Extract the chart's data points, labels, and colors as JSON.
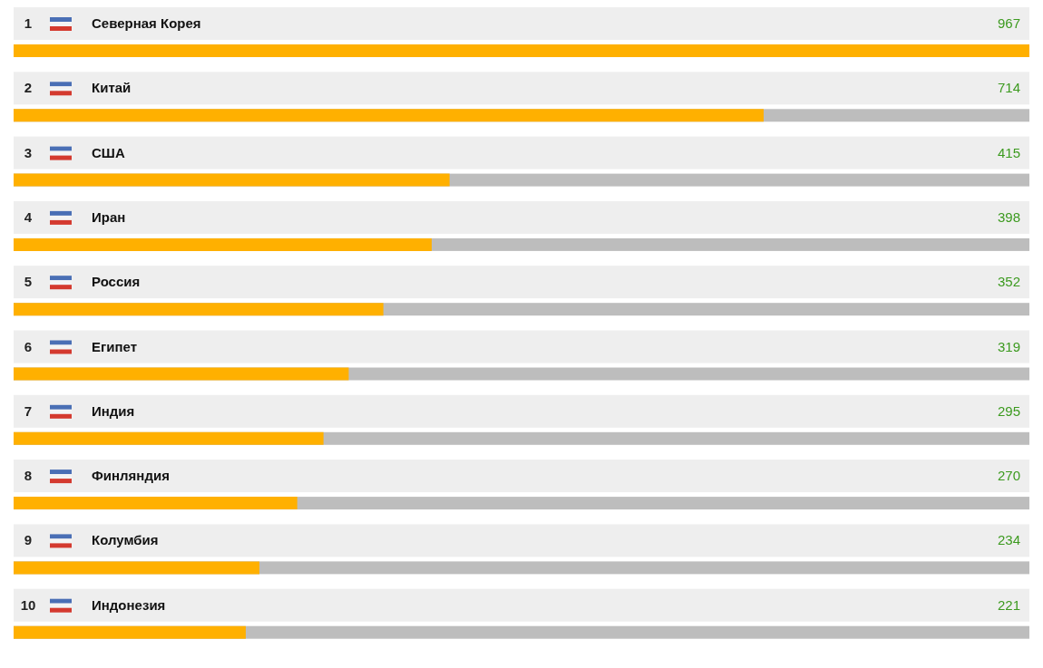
{
  "chart_data": {
    "type": "bar",
    "orientation": "horizontal",
    "categories": [
      "Северная Корея",
      "Китай",
      "США",
      "Иран",
      "Россия",
      "Египет",
      "Индия",
      "Финляндия",
      "Колумбия",
      "Индонезия"
    ],
    "values": [
      967,
      714,
      415,
      398,
      352,
      319,
      295,
      270,
      234,
      221
    ],
    "color": "#ffb000",
    "data_labels": true,
    "annotations": [
      "1",
      "2",
      "3",
      "4",
      "5",
      "6",
      "7",
      "8",
      "9",
      "10"
    ]
  }
}
